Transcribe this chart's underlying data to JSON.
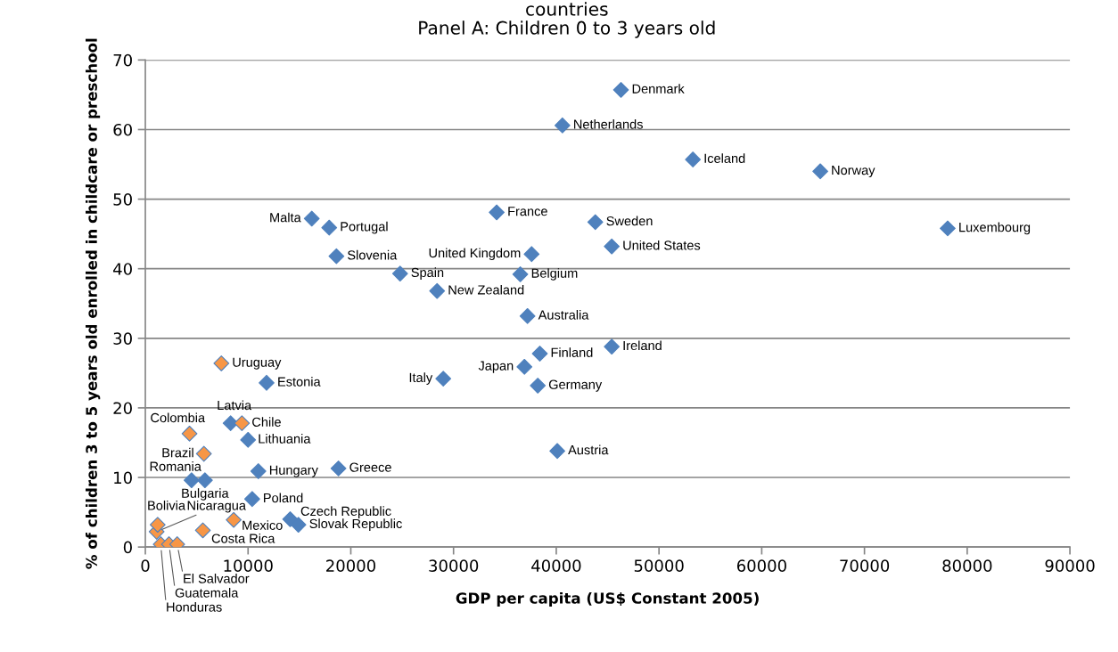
{
  "chart_data": {
    "type": "scatter",
    "title": "countries\nPanel A: Children 0 to 3 years old",
    "xlabel": "GDP per capita (US$ Constant 2005)",
    "ylabel": "% of children 3 to 5 years old enrolled in childcare or preschool",
    "xlim": [
      0,
      90000
    ],
    "ylim": [
      0,
      70
    ],
    "xticks": [
      0,
      10000,
      20000,
      30000,
      40000,
      50000,
      60000,
      70000,
      80000,
      90000
    ],
    "yticks": [
      0,
      10,
      20,
      30,
      40,
      50,
      60,
      70
    ],
    "grid": "y",
    "marker": "diamond",
    "series": [
      {
        "color": "#4f81bd",
        "x": [
          46300,
          40600,
          53300,
          65700,
          78100,
          34200,
          43800,
          45400,
          37600,
          36500,
          16200,
          17900,
          18600,
          24800,
          28400,
          37200,
          45400,
          38400,
          36900,
          38200,
          29000,
          40100,
          11800,
          8300,
          10000,
          11000,
          18800,
          4500,
          5800,
          10400,
          14100,
          14900
        ],
        "values": [
          65.7,
          60.6,
          55.7,
          54.0,
          45.8,
          48.1,
          46.7,
          43.2,
          42.1,
          39.2,
          47.2,
          45.9,
          41.8,
          39.3,
          36.8,
          33.2,
          28.8,
          27.8,
          25.9,
          23.2,
          24.2,
          13.8,
          23.6,
          17.8,
          15.4,
          10.9,
          11.3,
          9.6,
          9.6,
          6.9,
          4.0,
          3.2
        ]
      },
      {
        "color": "#f79646",
        "x": [
          7400,
          9400,
          4300,
          5700,
          8600,
          5600,
          1100,
          1200,
          1500,
          2300,
          3100
        ],
        "values": [
          26.4,
          17.8,
          16.3,
          13.4,
          3.9,
          2.4,
          2.2,
          3.2,
          0.4,
          0.4,
          0.4
        ]
      }
    ],
    "annotations": [
      {
        "text": "Denmark",
        "x": 46300,
        "y": 65.7
      },
      {
        "text": "Netherlands",
        "x": 40600,
        "y": 60.6
      },
      {
        "text": "Iceland",
        "x": 53300,
        "y": 55.7
      },
      {
        "text": "Norway",
        "x": 65700,
        "y": 54.0
      },
      {
        "text": "Luxembourg",
        "x": 78100,
        "y": 45.8
      },
      {
        "text": "France",
        "x": 34200,
        "y": 48.1
      },
      {
        "text": "Sweden",
        "x": 43800,
        "y": 46.7
      },
      {
        "text": "United States",
        "x": 45400,
        "y": 43.2
      },
      {
        "text": "United Kingdom",
        "x": 37600,
        "y": 42.1
      },
      {
        "text": "Belgium",
        "x": 36500,
        "y": 39.2
      },
      {
        "text": "Malta",
        "x": 16200,
        "y": 47.2
      },
      {
        "text": "Portugal",
        "x": 17900,
        "y": 45.9
      },
      {
        "text": "Slovenia",
        "x": 18600,
        "y": 41.8
      },
      {
        "text": "Spain",
        "x": 24800,
        "y": 39.3
      },
      {
        "text": "New Zealand",
        "x": 28400,
        "y": 36.8
      },
      {
        "text": "Australia",
        "x": 37200,
        "y": 33.2
      },
      {
        "text": "Ireland",
        "x": 45400,
        "y": 28.8
      },
      {
        "text": "Finland",
        "x": 38400,
        "y": 27.8
      },
      {
        "text": "Japan",
        "x": 36900,
        "y": 25.9
      },
      {
        "text": "Germany",
        "x": 38200,
        "y": 23.2
      },
      {
        "text": "Italy",
        "x": 29000,
        "y": 24.2
      },
      {
        "text": "Austria",
        "x": 40100,
        "y": 13.8
      },
      {
        "text": "Estonia",
        "x": 11800,
        "y": 23.6
      },
      {
        "text": "Latvia",
        "x": 8300,
        "y": 17.8
      },
      {
        "text": "Lithuania",
        "x": 10000,
        "y": 15.4
      },
      {
        "text": "Hungary",
        "x": 11000,
        "y": 10.9
      },
      {
        "text": "Greece",
        "x": 18800,
        "y": 11.3
      },
      {
        "text": "Romania",
        "x": 4500,
        "y": 9.6
      },
      {
        "text": "Bulgaria",
        "x": 5800,
        "y": 9.6
      },
      {
        "text": "Poland",
        "x": 10400,
        "y": 6.9
      },
      {
        "text": "Czech Republic",
        "x": 14100,
        "y": 4.0
      },
      {
        "text": "Slovak Republic",
        "x": 14900,
        "y": 3.2
      },
      {
        "text": "Uruguay",
        "x": 7400,
        "y": 26.4
      },
      {
        "text": "Chile",
        "x": 9400,
        "y": 17.8
      },
      {
        "text": "Colombia",
        "x": 4300,
        "y": 16.3
      },
      {
        "text": "Brazil",
        "x": 5700,
        "y": 13.4
      },
      {
        "text": "Mexico",
        "x": 8600,
        "y": 3.9
      },
      {
        "text": "Costa Rica",
        "x": 5600,
        "y": 2.4
      },
      {
        "text": "Nicaragua",
        "x": 1100,
        "y": 2.2
      },
      {
        "text": "Bolivia",
        "x": 1200,
        "y": 3.2
      },
      {
        "text": "Honduras",
        "x": 1500,
        "y": 0.4
      },
      {
        "text": "Guatemala",
        "x": 2300,
        "y": 0.4
      },
      {
        "text": "El Salvador",
        "x": 3100,
        "y": 0.4
      }
    ]
  }
}
